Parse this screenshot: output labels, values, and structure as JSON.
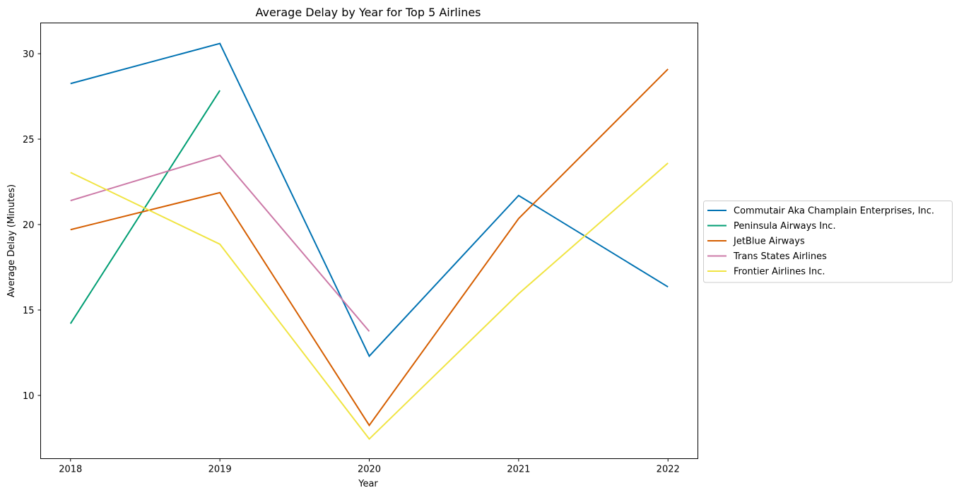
{
  "chart_data": {
    "type": "line",
    "title": "Average Delay by Year for Top 5 Airlines",
    "xlabel": "Year",
    "ylabel": "Average Delay (Minutes)",
    "x": [
      2018,
      2019,
      2020,
      2021,
      2022
    ],
    "xlim": [
      2017.8,
      2022.2
    ],
    "ylim": [
      6.3,
      31.8
    ],
    "yticks": [
      10,
      15,
      20,
      25,
      30
    ],
    "grid": false,
    "legend_position": "center-right-outside",
    "series": [
      {
        "name": "Commutair Aka Champlain Enterprises, Inc.",
        "color": "#0072b2",
        "values": [
          28.25,
          30.6,
          12.3,
          21.7,
          16.35
        ]
      },
      {
        "name": "Peninsula Airways Inc.",
        "color": "#009e73",
        "values": [
          14.2,
          27.85,
          null,
          null,
          null
        ]
      },
      {
        "name": "JetBlue Airways",
        "color": "#d55e00",
        "values": [
          19.7,
          21.87,
          8.25,
          20.35,
          29.1
        ]
      },
      {
        "name": "Trans States Airlines",
        "color": "#cc79a7",
        "values": [
          21.4,
          24.05,
          13.75,
          null,
          null
        ]
      },
      {
        "name": "Frontier Airlines Inc.",
        "color": "#f0e442",
        "values": [
          23.05,
          18.85,
          7.45,
          15.95,
          23.6
        ]
      }
    ]
  }
}
